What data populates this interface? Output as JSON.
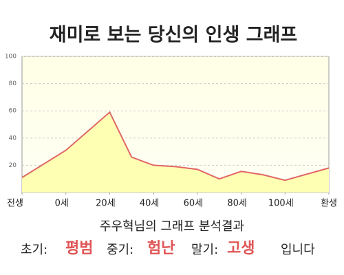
{
  "chart_data": {
    "type": "area",
    "title": "재미로 보는 당신의 인생 그래프",
    "x": [
      0,
      1,
      2,
      2.5,
      3,
      3.5,
      4,
      4.5,
      5,
      5.5,
      6,
      6.5,
      7
    ],
    "values": [
      11,
      31,
      59,
      26,
      20,
      19,
      17,
      10,
      15.5,
      13,
      9,
      13.5,
      18
    ],
    "color": "#e06666",
    "fill": "#ffffb3",
    "xlim": [
      0,
      7
    ],
    "xticks": [
      {
        "value": 0,
        "label": "전생"
      },
      {
        "value": 1,
        "label": "0세"
      },
      {
        "value": 2,
        "label": "20세"
      },
      {
        "value": 3,
        "label": "40세"
      },
      {
        "value": 4,
        "label": "60세"
      },
      {
        "value": 5,
        "label": "80세"
      },
      {
        "value": 6,
        "label": "100세"
      },
      {
        "value": 7,
        "label": "환생"
      }
    ],
    "ylim": [
      0,
      100
    ],
    "yticks": [
      20,
      40,
      60,
      80,
      100
    ],
    "grid": true,
    "annotations": {
      "subtitle": "주우혁님의 그래프 분석결과",
      "early_label": "초기:",
      "early": "평범",
      "mid_label": "중기:",
      "mid": "험난",
      "late_label": "말기:",
      "late": "고생",
      "ending": "입니다"
    }
  }
}
